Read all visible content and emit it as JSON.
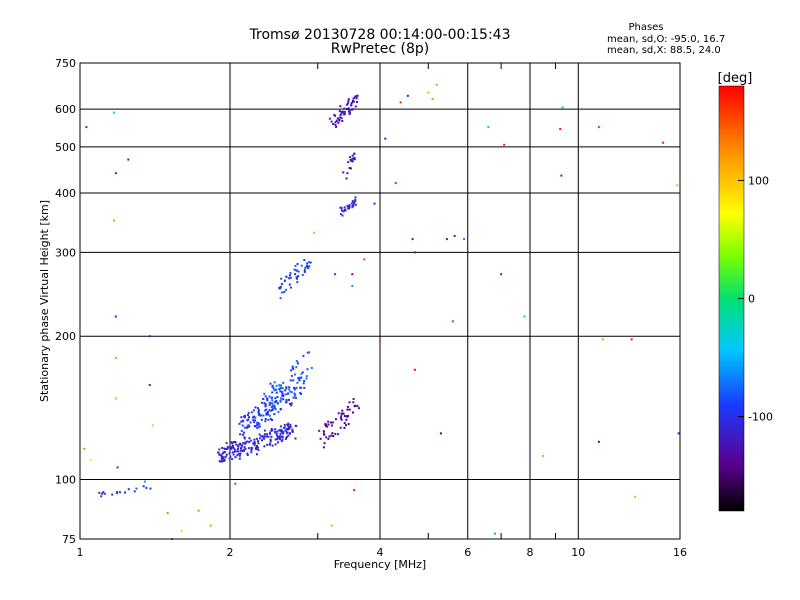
{
  "chart_data": {
    "type": "scatter",
    "title": "Tromsø 20130728 00:14:00-00:15:43",
    "subtitle": "RwPretec (8p)",
    "xlabel": "Frequency [MHz]",
    "ylabel": "Stationary phase Virtual Height [km]",
    "x_scale": "log",
    "y_scale": "log",
    "xlim": [
      1,
      16
    ],
    "ylim": [
      75,
      750
    ],
    "x_ticks": [
      1,
      2,
      4,
      6,
      8,
      10,
      16
    ],
    "x_tick_labels": [
      "1",
      "2",
      "4",
      "6",
      "8",
      "10",
      "16"
    ],
    "x_minor_ticks": [
      3,
      5,
      7,
      9
    ],
    "y_ticks": [
      75,
      100,
      200,
      300,
      400,
      500,
      600,
      750
    ],
    "y_tick_labels": [
      "75",
      "100",
      "200",
      "300",
      "400",
      "500",
      "600",
      "750"
    ],
    "grid": true,
    "phases_box": {
      "title": "Phases",
      "line1": "mean, sd,O: -95.0, 16.7",
      "line2": "mean, sd,X: 88.5, 24.0"
    },
    "colorbar": {
      "unit": "[deg]",
      "ticks": [
        100,
        0,
        -100
      ],
      "tick_labels": [
        "100",
        "0",
        "-100"
      ],
      "range": [
        -180,
        180
      ]
    },
    "clusters": [
      {
        "x": [
          1.9,
          2.7
        ],
        "y": [
          108,
          132
        ],
        "phase": -110,
        "count": 190,
        "spread": 0.03
      },
      {
        "x": [
          2.1,
          2.8
        ],
        "y": [
          120,
          170
        ],
        "phase": -95,
        "count": 140,
        "spread": 0.03
      },
      {
        "x": [
          2.3,
          2.9
        ],
        "y": [
          130,
          190
        ],
        "phase": -80,
        "count": 60,
        "spread": 0.04
      },
      {
        "x": [
          2.5,
          2.9
        ],
        "y": [
          240,
          295
        ],
        "phase": -90,
        "count": 45,
        "spread": 0.02
      },
      {
        "x": [
          3.0,
          3.6
        ],
        "y": [
          115,
          150
        ],
        "phase": -135,
        "count": 55,
        "spread": 0.03
      },
      {
        "x": [
          3.2,
          3.6
        ],
        "y": [
          545,
          650
        ],
        "phase": -125,
        "count": 55,
        "spread": 0.02
      },
      {
        "x": [
          3.35,
          3.6
        ],
        "y": [
          360,
          390
        ],
        "phase": -110,
        "count": 30,
        "spread": 0.015
      },
      {
        "x": [
          3.4,
          3.6
        ],
        "y": [
          420,
          510
        ],
        "phase": -125,
        "count": 18,
        "spread": 0.015
      },
      {
        "x": [
          1.1,
          1.4
        ],
        "y": [
          92,
          98
        ],
        "phase": -95,
        "count": 16,
        "spread": 0.01
      }
    ],
    "points": [
      {
        "x": 1.03,
        "y": 550,
        "phase": -100
      },
      {
        "x": 1.17,
        "y": 590,
        "phase": -40
      },
      {
        "x": 1.18,
        "y": 440,
        "phase": -115
      },
      {
        "x": 1.25,
        "y": 470,
        "phase": -120
      },
      {
        "x": 1.17,
        "y": 350,
        "phase": 120
      },
      {
        "x": 1.18,
        "y": 220,
        "phase": -100
      },
      {
        "x": 1.18,
        "y": 180,
        "phase": 120
      },
      {
        "x": 1.18,
        "y": 148,
        "phase": 110
      },
      {
        "x": 1.38,
        "y": 200,
        "phase": -110
      },
      {
        "x": 1.38,
        "y": 158,
        "phase": -110
      },
      {
        "x": 1.4,
        "y": 130,
        "phase": 40
      },
      {
        "x": 1.19,
        "y": 106,
        "phase": -100
      },
      {
        "x": 1.02,
        "y": 116,
        "phase": 130
      },
      {
        "x": 1.05,
        "y": 110,
        "phase": 80
      },
      {
        "x": 1.35,
        "y": 99,
        "phase": -60
      },
      {
        "x": 1.5,
        "y": 85,
        "phase": 130
      },
      {
        "x": 1.6,
        "y": 78,
        "phase": 90
      },
      {
        "x": 1.53,
        "y": 75,
        "phase": -60
      },
      {
        "x": 1.73,
        "y": 86,
        "phase": 130
      },
      {
        "x": 1.83,
        "y": 80,
        "phase": 120
      },
      {
        "x": 2.05,
        "y": 98,
        "phase": 160
      },
      {
        "x": 2.95,
        "y": 330,
        "phase": 110
      },
      {
        "x": 3.2,
        "y": 80,
        "phase": 110
      },
      {
        "x": 3.25,
        "y": 270,
        "phase": -100
      },
      {
        "x": 3.52,
        "y": 270,
        "phase": -120
      },
      {
        "x": 3.52,
        "y": 255,
        "phase": -60
      },
      {
        "x": 3.55,
        "y": 95,
        "phase": 175
      },
      {
        "x": 3.72,
        "y": 290,
        "phase": 160
      },
      {
        "x": 3.9,
        "y": 380,
        "phase": -115
      },
      {
        "x": 4.0,
        "y": 400,
        "phase": -120
      },
      {
        "x": 4.0,
        "y": 195,
        "phase": 150
      },
      {
        "x": 4.1,
        "y": 520,
        "phase": -110
      },
      {
        "x": 4.3,
        "y": 420,
        "phase": 170
      },
      {
        "x": 4.4,
        "y": 620,
        "phase": 170
      },
      {
        "x": 4.55,
        "y": 640,
        "phase": -120
      },
      {
        "x": 4.65,
        "y": 320,
        "phase": -110
      },
      {
        "x": 4.7,
        "y": 300,
        "phase": -120
      },
      {
        "x": 4.7,
        "y": 170,
        "phase": 175
      },
      {
        "x": 5.0,
        "y": 650,
        "phase": 110
      },
      {
        "x": 5.1,
        "y": 630,
        "phase": 130
      },
      {
        "x": 5.2,
        "y": 675,
        "phase": 120
      },
      {
        "x": 5.3,
        "y": 125,
        "phase": -140
      },
      {
        "x": 5.45,
        "y": 320,
        "phase": -115
      },
      {
        "x": 5.6,
        "y": 215,
        "phase": 160
      },
      {
        "x": 5.65,
        "y": 325,
        "phase": -110
      },
      {
        "x": 5.9,
        "y": 320,
        "phase": -70
      },
      {
        "x": 6.6,
        "y": 550,
        "phase": -50
      },
      {
        "x": 6.8,
        "y": 77,
        "phase": -60
      },
      {
        "x": 7.0,
        "y": 270,
        "phase": -90
      },
      {
        "x": 7.1,
        "y": 505,
        "phase": 170
      },
      {
        "x": 7.8,
        "y": 220,
        "phase": -50
      },
      {
        "x": 8.5,
        "y": 112,
        "phase": 120
      },
      {
        "x": 9.2,
        "y": 545,
        "phase": 170
      },
      {
        "x": 9.25,
        "y": 435,
        "phase": -110
      },
      {
        "x": 9.3,
        "y": 605,
        "phase": -30
      },
      {
        "x": 11.0,
        "y": 550,
        "phase": 160
      },
      {
        "x": 11.0,
        "y": 120,
        "phase": -130
      },
      {
        "x": 11.2,
        "y": 197,
        "phase": 120
      },
      {
        "x": 12.8,
        "y": 197,
        "phase": 170
      },
      {
        "x": 13.0,
        "y": 92,
        "phase": 110
      },
      {
        "x": 14.8,
        "y": 510,
        "phase": 170
      },
      {
        "x": 15.8,
        "y": 415,
        "phase": 110
      },
      {
        "x": 15.9,
        "y": 125,
        "phase": -100
      }
    ]
  }
}
